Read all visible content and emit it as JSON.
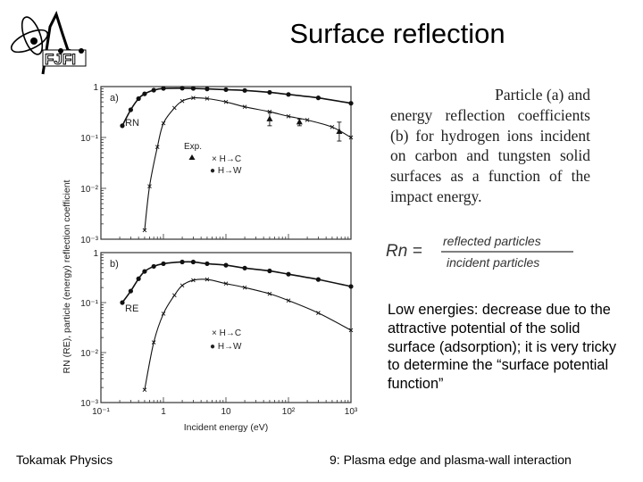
{
  "slide": {
    "title": "Surface reflection",
    "logo": {
      "name": "FJFI",
      "icon": "fjfi-logo-icon"
    },
    "caption": {
      "first_line": "Particle (a) and",
      "rest": "energy reflection coefficients (b) for hydrogen ions incident on carbon and tungsten solid surfaces as a function of the impact energy."
    },
    "formula": {
      "lhs": "Rn =",
      "numerator": "reflected particles",
      "denominator": "incident particles"
    },
    "note": "Low energies: decrease due to the attractive potential of the solid surface (adsorption); it is very tricky to determine the “surface potential function”",
    "footer": {
      "left": "Tokamak Physics",
      "right": "9: Plasma edge and plasma-wall interaction"
    }
  },
  "chart_data": [
    {
      "type": "line",
      "panel": "a)",
      "title": "",
      "curve_label": "R_N",
      "xlabel": "Incident energy (eV)",
      "ylabel": "R_N (R_E), particle (energy) reflection coefficient",
      "xscale": "log",
      "yscale": "log",
      "xlim": [
        0.1,
        1000
      ],
      "ylim": [
        0.001,
        1
      ],
      "x_ticks": [
        "10^-1",
        "1",
        "10",
        "10^2",
        "10^3"
      ],
      "y_ticks": [
        "10^-3",
        "10^-2",
        "10^-1",
        "1"
      ],
      "legend": [
        "Exp.",
        "× H→C",
        "● H→W"
      ],
      "legend_position": "center",
      "grid": false,
      "series": [
        {
          "name": "H→W",
          "marker": "circle",
          "x": [
            0.22,
            0.3,
            0.4,
            0.5,
            0.7,
            1.0,
            2.0,
            3.0,
            5.0,
            10,
            20,
            50,
            100,
            300,
            1000
          ],
          "y": [
            0.17,
            0.35,
            0.58,
            0.72,
            0.85,
            0.92,
            0.93,
            0.92,
            0.9,
            0.87,
            0.84,
            0.77,
            0.7,
            0.6,
            0.47
          ]
        },
        {
          "name": "H→C",
          "marker": "x",
          "x": [
            0.5,
            0.6,
            0.8,
            1.0,
            1.5,
            2.0,
            3.0,
            5.0,
            10,
            20,
            50,
            100,
            200,
            500,
            1000
          ],
          "y": [
            0.0015,
            0.011,
            0.065,
            0.19,
            0.38,
            0.52,
            0.6,
            0.58,
            0.5,
            0.4,
            0.32,
            0.26,
            0.22,
            0.16,
            0.1
          ]
        },
        {
          "name": "Exp.",
          "marker": "triangle",
          "x": [
            50,
            150,
            650
          ],
          "y": [
            0.23,
            0.2,
            0.13
          ],
          "error_bars": [
            [
              0.17,
              0.32
            ],
            [
              0.17,
              0.23
            ],
            [
              0.085,
              0.2
            ]
          ]
        }
      ]
    },
    {
      "type": "line",
      "panel": "b)",
      "title": "",
      "curve_label": "R_E",
      "xlabel": "Incident energy (eV)",
      "ylabel": "R_N (R_E), particle (energy) reflection coefficient",
      "xscale": "log",
      "yscale": "log",
      "xlim": [
        0.1,
        1000
      ],
      "ylim": [
        0.001,
        1
      ],
      "x_ticks": [
        "10^-1",
        "1",
        "10",
        "10^2",
        "10^3"
      ],
      "y_ticks": [
        "10^-3",
        "10^-2",
        "10^-1",
        "1"
      ],
      "legend": [
        "× H→C",
        "● H→W"
      ],
      "legend_position": "center",
      "grid": false,
      "series": [
        {
          "name": "H→W",
          "marker": "circle",
          "x": [
            0.22,
            0.3,
            0.4,
            0.5,
            0.7,
            1.0,
            2.0,
            3.0,
            5.0,
            10,
            20,
            50,
            100,
            300,
            1000
          ],
          "y": [
            0.1,
            0.17,
            0.3,
            0.42,
            0.53,
            0.6,
            0.65,
            0.65,
            0.6,
            0.56,
            0.49,
            0.43,
            0.37,
            0.29,
            0.21
          ]
        },
        {
          "name": "H→C",
          "marker": "x",
          "x": [
            0.5,
            0.7,
            1.0,
            1.5,
            2.0,
            3.0,
            5.0,
            10,
            20,
            50,
            100,
            300,
            1000
          ],
          "y": [
            0.0018,
            0.016,
            0.06,
            0.14,
            0.22,
            0.28,
            0.29,
            0.24,
            0.2,
            0.15,
            0.11,
            0.062,
            0.028
          ]
        }
      ]
    }
  ]
}
